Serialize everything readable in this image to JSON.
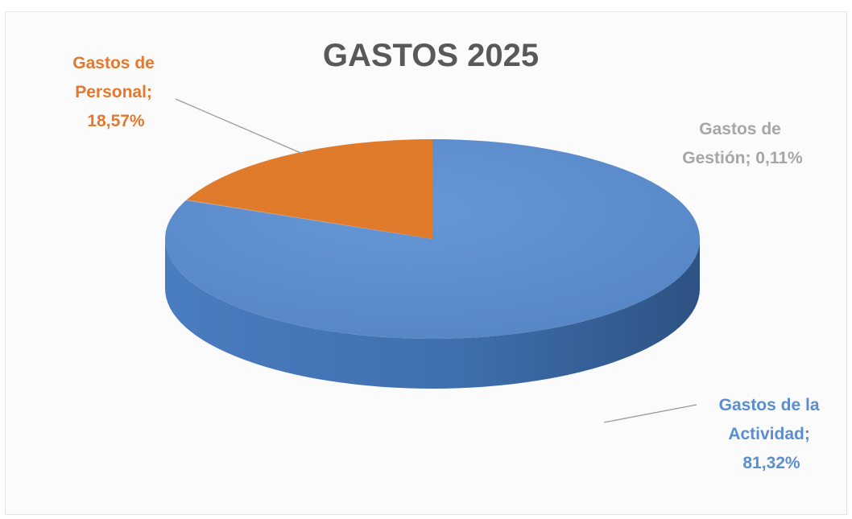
{
  "chart_data": {
    "type": "pie",
    "title": "GASTOS 2025",
    "slices": [
      {
        "name": "Gastos de la Actividad",
        "value": 81.32,
        "label_lines": [
          "Gastos de la",
          "Actividad;",
          "81,32%"
        ],
        "color": "#5b8ed0"
      },
      {
        "name": "Gastos de Gestión",
        "value": 0.11,
        "label_lines": [
          "Gastos de",
          "Gestión; 0,11%"
        ],
        "color": "#a5a5a5"
      },
      {
        "name": "Gastos de Personal",
        "value": 18.57,
        "label_lines": [
          "Gastos de",
          "Personal;",
          "18,57%"
        ],
        "color": "#e07b2c"
      }
    ],
    "legend": "none",
    "style": "3d-pie"
  },
  "colors": {
    "activity_top": "#5b8ed0",
    "activity_side": "#3b6aa8",
    "personal_top": "#e07b2c",
    "personal_label": "#e3782e",
    "gestion_label": "#a6a6a6",
    "activity_label": "#5b8ed0",
    "title": "#595959"
  }
}
